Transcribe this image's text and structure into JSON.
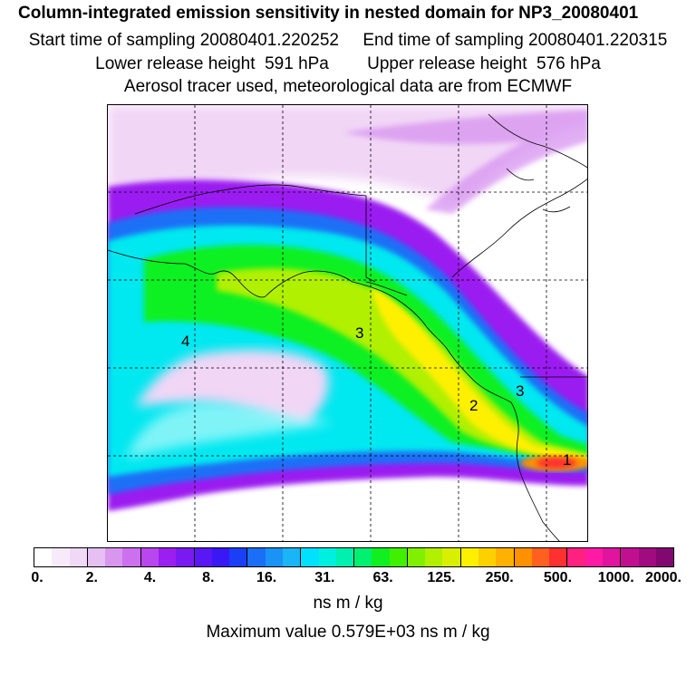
{
  "header": {
    "title": "Column-integrated emission sensitivity in nested domain for NP3_20080401",
    "sampling_times": "Start time of sampling 20080401.220252     End time of sampling 20080401.220315",
    "release_heights": "Lower release height  591 hPa        Upper release height  576 hPa",
    "tracer_info": "Aerosol tracer used, meteorological data are from ECMWF"
  },
  "map": {
    "labels": [
      {
        "text": "1",
        "name": "plume-label-1"
      },
      {
        "text": "2",
        "name": "plume-label-2"
      },
      {
        "text": "3",
        "name": "plume-label-3"
      },
      {
        "text": "3",
        "name": "plume-label-3b"
      },
      {
        "text": "4",
        "name": "plume-label-4"
      }
    ],
    "gridlines": "dashed",
    "coastlines": true
  },
  "colorbar": {
    "tick_labels": [
      "0.",
      "2.",
      "4.",
      "8.",
      "16.",
      "31.",
      "63.",
      "125.",
      "250.",
      "500.",
      "1000.",
      "2000."
    ],
    "colors": [
      "#ffffff",
      "#f7ebfb",
      "#f0d8f7",
      "#e6bff3",
      "#d996ef",
      "#cc70f0",
      "#b847ef",
      "#9b1ff0",
      "#7a1af2",
      "#5a17f5",
      "#3a18f6",
      "#1a3ff6",
      "#1a6ff6",
      "#1a93f6",
      "#1ab5f6",
      "#00e0ff",
      "#00f0e0",
      "#00f0b0",
      "#00f070",
      "#10f020",
      "#40f000",
      "#80f000",
      "#b0f000",
      "#d8f000",
      "#fff000",
      "#ffd000",
      "#ffb000",
      "#ff9000",
      "#ff6020",
      "#ff3030",
      "#ff2080",
      "#ff1aa6",
      "#e0149e",
      "#c01090",
      "#a00c80",
      "#800870"
    ],
    "unit": "ns m / kg",
    "max_value": "Maximum value  0.579E+03 ns m / kg"
  }
}
